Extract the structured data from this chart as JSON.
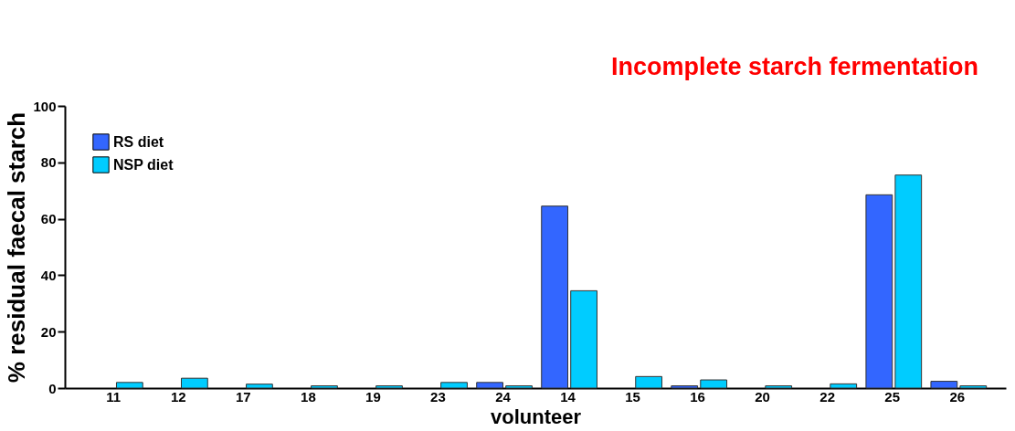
{
  "chart_data": {
    "type": "bar",
    "xlabel": "volunteer",
    "ylabel": "% residual faecal starch",
    "categories": [
      "11",
      "12",
      "17",
      "18",
      "19",
      "23",
      "24",
      "14",
      "15",
      "16",
      "20",
      "22",
      "25",
      "26"
    ],
    "series": [
      {
        "name": "RS diet",
        "color": "#3366ff",
        "values": [
          null,
          null,
          null,
          null,
          null,
          null,
          2.0,
          64.5,
          null,
          0.8,
          null,
          null,
          68.5,
          2.4
        ]
      },
      {
        "name": "NSP diet",
        "color": "#00ccff",
        "values": [
          2.0,
          3.5,
          1.4,
          0.8,
          0.8,
          2.0,
          0.8,
          34.5,
          4.1,
          2.9,
          0.8,
          1.5,
          75.5,
          0.8
        ]
      }
    ],
    "ylim": [
      0,
      100
    ],
    "yticks": [
      0,
      20,
      40,
      60,
      80,
      100
    ],
    "grid": false,
    "legend": "top left",
    "annotations": [
      "Incomplete starch fermentation"
    ]
  }
}
